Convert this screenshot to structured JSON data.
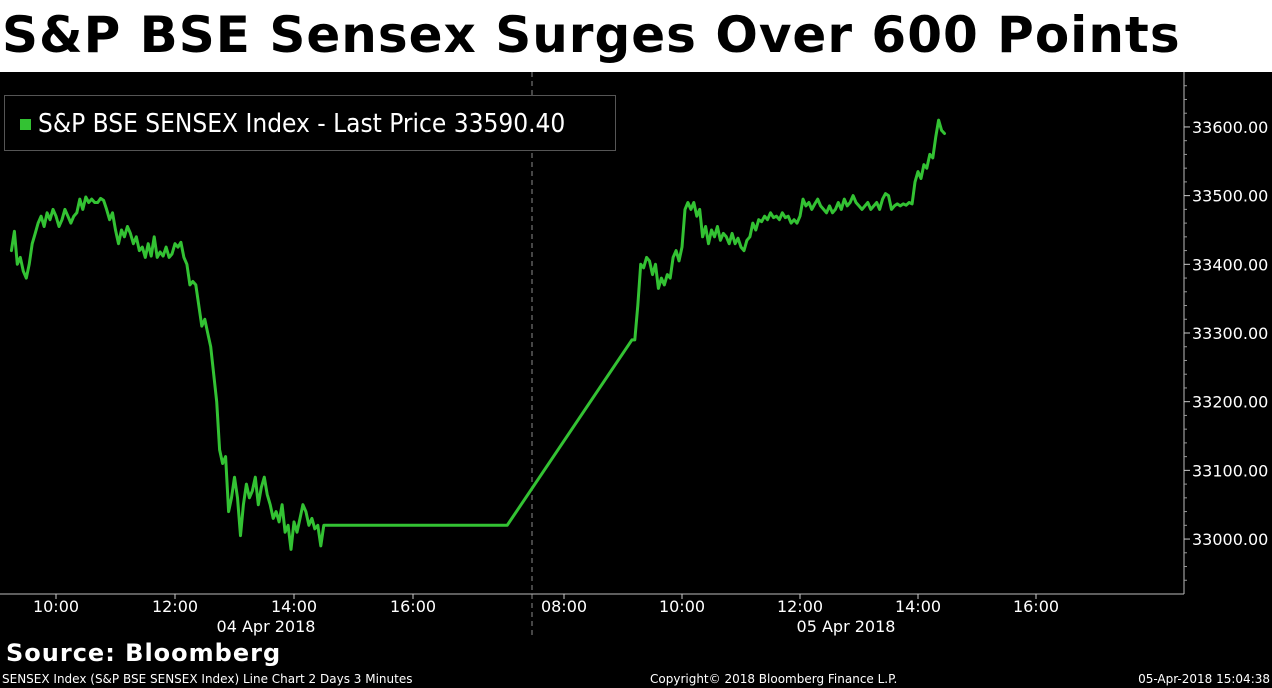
{
  "headline": "S&P BSE Sensex Surges Over 600 Points",
  "legend": {
    "label": "S&P BSE SENSEX Index - Last Price",
    "value": "33590.40"
  },
  "source": "Source: Bloomberg",
  "footer": {
    "left": "SENSEX Index (S&P BSE SENSEX Index) Line Chart 2 Days 3 Minutes",
    "center": "Copyright© 2018 Bloomberg Finance L.P.",
    "right": "05-Apr-2018 15:04:38"
  },
  "colors": {
    "line": "#33c233",
    "background": "#000000",
    "text": "#ffffff"
  },
  "chart_data": {
    "type": "line",
    "title": "S&P BSE Sensex Surges Over 600 Points",
    "ylim": [
      32920,
      33680
    ],
    "y_ticks": [
      "33600.00",
      "33500.00",
      "33400.00",
      "33300.00",
      "33200.00",
      "33100.00",
      "33000.00"
    ],
    "y_tick_values": [
      33600,
      33500,
      33400,
      33300,
      33200,
      33100,
      33000
    ],
    "grid": false,
    "legend_position": "top-left",
    "days": [
      {
        "label": "04 Apr 2018",
        "x_ticks": [
          "10:00",
          "12:00",
          "14:00",
          "16:00"
        ],
        "x_tick_values": [
          "10:00",
          "12:00",
          "14:00",
          "16:00"
        ]
      },
      {
        "label": "05 Apr 2018",
        "x_ticks": [
          "08:00",
          "10:00",
          "12:00",
          "14:00",
          "16:00"
        ],
        "x_tick_values": [
          "08:00",
          "10:00",
          "12:00",
          "14:00",
          "16:00"
        ]
      }
    ],
    "series": [
      {
        "name": "S&P BSE SENSEX Index - Last Price",
        "last_value": 33590.4,
        "points": [
          [
            "04 Apr 2018 09:15",
            33420
          ],
          [
            "04 Apr 2018 09:18",
            33448
          ],
          [
            "04 Apr 2018 09:21",
            33400
          ],
          [
            "04 Apr 2018 09:24",
            33410
          ],
          [
            "04 Apr 2018 09:27",
            33390
          ],
          [
            "04 Apr 2018 09:30",
            33380
          ],
          [
            "04 Apr 2018 09:33",
            33400
          ],
          [
            "04 Apr 2018 09:36",
            33430
          ],
          [
            "04 Apr 2018 09:39",
            33445
          ],
          [
            "04 Apr 2018 09:42",
            33460
          ],
          [
            "04 Apr 2018 09:45",
            33470
          ],
          [
            "04 Apr 2018 09:48",
            33455
          ],
          [
            "04 Apr 2018 09:51",
            33475
          ],
          [
            "04 Apr 2018 09:54",
            33465
          ],
          [
            "04 Apr 2018 09:57",
            33480
          ],
          [
            "04 Apr 2018 10:00",
            33470
          ],
          [
            "04 Apr 2018 10:03",
            33455
          ],
          [
            "04 Apr 2018 10:06",
            33465
          ],
          [
            "04 Apr 2018 10:09",
            33480
          ],
          [
            "04 Apr 2018 10:12",
            33470
          ],
          [
            "04 Apr 2018 10:15",
            33460
          ],
          [
            "04 Apr 2018 10:18",
            33470
          ],
          [
            "04 Apr 2018 10:21",
            33475
          ],
          [
            "04 Apr 2018 10:24",
            33495
          ],
          [
            "04 Apr 2018 10:27",
            33480
          ],
          [
            "04 Apr 2018 10:30",
            33498
          ],
          [
            "04 Apr 2018 10:33",
            33490
          ],
          [
            "04 Apr 2018 10:36",
            33495
          ],
          [
            "04 Apr 2018 10:39",
            33490
          ],
          [
            "04 Apr 2018 10:42",
            33490
          ],
          [
            "04 Apr 2018 10:45",
            33496
          ],
          [
            "04 Apr 2018 10:48",
            33493
          ],
          [
            "04 Apr 2018 10:51",
            33480
          ],
          [
            "04 Apr 2018 10:54",
            33465
          ],
          [
            "04 Apr 2018 10:57",
            33475
          ],
          [
            "04 Apr 2018 11:00",
            33450
          ],
          [
            "04 Apr 2018 11:03",
            33430
          ],
          [
            "04 Apr 2018 11:06",
            33450
          ],
          [
            "04 Apr 2018 11:09",
            33440
          ],
          [
            "04 Apr 2018 11:12",
            33455
          ],
          [
            "04 Apr 2018 11:15",
            33445
          ],
          [
            "04 Apr 2018 11:18",
            33430
          ],
          [
            "04 Apr 2018 11:21",
            33440
          ],
          [
            "04 Apr 2018 11:24",
            33420
          ],
          [
            "04 Apr 2018 11:27",
            33425
          ],
          [
            "04 Apr 2018 11:30",
            33410
          ],
          [
            "04 Apr 2018 11:33",
            33430
          ],
          [
            "04 Apr 2018 11:36",
            33412
          ],
          [
            "04 Apr 2018 11:39",
            33440
          ],
          [
            "04 Apr 2018 11:42",
            33410
          ],
          [
            "04 Apr 2018 11:45",
            33418
          ],
          [
            "04 Apr 2018 11:48",
            33412
          ],
          [
            "04 Apr 2018 11:51",
            33425
          ],
          [
            "04 Apr 2018 11:54",
            33410
          ],
          [
            "04 Apr 2018 11:57",
            33415
          ],
          [
            "04 Apr 2018 12:00",
            33430
          ],
          [
            "04 Apr 2018 12:03",
            33425
          ],
          [
            "04 Apr 2018 12:06",
            33432
          ],
          [
            "04 Apr 2018 12:09",
            33410
          ],
          [
            "04 Apr 2018 12:12",
            33400
          ],
          [
            "04 Apr 2018 12:15",
            33370
          ],
          [
            "04 Apr 2018 12:18",
            33375
          ],
          [
            "04 Apr 2018 12:21",
            33370
          ],
          [
            "04 Apr 2018 12:24",
            33340
          ],
          [
            "04 Apr 2018 12:27",
            33310
          ],
          [
            "04 Apr 2018 12:30",
            33320
          ],
          [
            "04 Apr 2018 12:33",
            33300
          ],
          [
            "04 Apr 2018 12:36",
            33280
          ],
          [
            "04 Apr 2018 12:39",
            33240
          ],
          [
            "04 Apr 2018 12:42",
            33200
          ],
          [
            "04 Apr 2018 12:45",
            33130
          ],
          [
            "04 Apr 2018 12:48",
            33110
          ],
          [
            "04 Apr 2018 12:51",
            33120
          ],
          [
            "04 Apr 2018 12:54",
            33040
          ],
          [
            "04 Apr 2018 12:57",
            33060
          ],
          [
            "04 Apr 2018 13:00",
            33090
          ],
          [
            "04 Apr 2018 13:03",
            33060
          ],
          [
            "04 Apr 2018 13:06",
            33005
          ],
          [
            "04 Apr 2018 13:09",
            33050
          ],
          [
            "04 Apr 2018 13:12",
            33080
          ],
          [
            "04 Apr 2018 13:15",
            33060
          ],
          [
            "04 Apr 2018 13:18",
            33070
          ],
          [
            "04 Apr 2018 13:21",
            33090
          ],
          [
            "04 Apr 2018 13:24",
            33050
          ],
          [
            "04 Apr 2018 13:27",
            33075
          ],
          [
            "04 Apr 2018 13:30",
            33090
          ],
          [
            "04 Apr 2018 13:33",
            33065
          ],
          [
            "04 Apr 2018 13:36",
            33050
          ],
          [
            "04 Apr 2018 13:39",
            33030
          ],
          [
            "04 Apr 2018 13:42",
            33040
          ],
          [
            "04 Apr 2018 13:45",
            33025
          ],
          [
            "04 Apr 2018 13:48",
            33050
          ],
          [
            "04 Apr 2018 13:51",
            33010
          ],
          [
            "04 Apr 2018 13:54",
            33020
          ],
          [
            "04 Apr 2018 13:57",
            32985
          ],
          [
            "04 Apr 2018 14:00",
            33025
          ],
          [
            "04 Apr 2018 14:03",
            33010
          ],
          [
            "04 Apr 2018 14:06",
            33030
          ],
          [
            "04 Apr 2018 14:09",
            33050
          ],
          [
            "04 Apr 2018 14:12",
            33040
          ],
          [
            "04 Apr 2018 14:15",
            33020
          ],
          [
            "04 Apr 2018 14:18",
            33030
          ],
          [
            "04 Apr 2018 14:21",
            33015
          ],
          [
            "04 Apr 2018 14:24",
            33020
          ],
          [
            "04 Apr 2018 14:27",
            32990
          ],
          [
            "04 Apr 2018 14:30",
            33020
          ],
          [
            "04 Apr 2018 15:30",
            33020
          ],
          [
            "04 Apr 2018 17:35",
            33020
          ],
          [
            "05 Apr 2018 09:09",
            33290
          ],
          [
            "05 Apr 2018 09:12",
            33290
          ],
          [
            "05 Apr 2018 09:15",
            33340
          ],
          [
            "05 Apr 2018 09:18",
            33400
          ],
          [
            "05 Apr 2018 09:21",
            33395
          ],
          [
            "05 Apr 2018 09:24",
            33410
          ],
          [
            "05 Apr 2018 09:27",
            33405
          ],
          [
            "05 Apr 2018 09:30",
            33385
          ],
          [
            "05 Apr 2018 09:33",
            33400
          ],
          [
            "05 Apr 2018 09:36",
            33365
          ],
          [
            "05 Apr 2018 09:39",
            33380
          ],
          [
            "05 Apr 2018 09:42",
            33370
          ],
          [
            "05 Apr 2018 09:45",
            33385
          ],
          [
            "05 Apr 2018 09:48",
            33380
          ],
          [
            "05 Apr 2018 09:51",
            33410
          ],
          [
            "05 Apr 2018 09:54",
            33420
          ],
          [
            "05 Apr 2018 09:57",
            33405
          ],
          [
            "05 Apr 2018 10:00",
            33425
          ],
          [
            "05 Apr 2018 10:03",
            33480
          ],
          [
            "05 Apr 2018 10:06",
            33490
          ],
          [
            "05 Apr 2018 10:09",
            33480
          ],
          [
            "05 Apr 2018 10:12",
            33490
          ],
          [
            "05 Apr 2018 10:15",
            33470
          ],
          [
            "05 Apr 2018 10:18",
            33480
          ],
          [
            "05 Apr 2018 10:21",
            33440
          ],
          [
            "05 Apr 2018 10:24",
            33455
          ],
          [
            "05 Apr 2018 10:27",
            33430
          ],
          [
            "05 Apr 2018 10:30",
            33450
          ],
          [
            "05 Apr 2018 10:33",
            33440
          ],
          [
            "05 Apr 2018 10:36",
            33455
          ],
          [
            "05 Apr 2018 10:39",
            33435
          ],
          [
            "05 Apr 2018 10:42",
            33445
          ],
          [
            "05 Apr 2018 10:45",
            33440
          ],
          [
            "05 Apr 2018 10:48",
            33430
          ],
          [
            "05 Apr 2018 10:51",
            33445
          ],
          [
            "05 Apr 2018 10:54",
            33430
          ],
          [
            "05 Apr 2018 10:57",
            33438
          ],
          [
            "05 Apr 2018 11:00",
            33425
          ],
          [
            "05 Apr 2018 11:03",
            33420
          ],
          [
            "05 Apr 2018 11:06",
            33435
          ],
          [
            "05 Apr 2018 11:09",
            33440
          ],
          [
            "05 Apr 2018 11:12",
            33460
          ],
          [
            "05 Apr 2018 11:15",
            33450
          ],
          [
            "05 Apr 2018 11:18",
            33465
          ],
          [
            "05 Apr 2018 11:21",
            33462
          ],
          [
            "05 Apr 2018 11:24",
            33470
          ],
          [
            "05 Apr 2018 11:27",
            33465
          ],
          [
            "05 Apr 2018 11:30",
            33475
          ],
          [
            "05 Apr 2018 11:33",
            33468
          ],
          [
            "05 Apr 2018 11:36",
            33470
          ],
          [
            "05 Apr 2018 11:39",
            33465
          ],
          [
            "05 Apr 2018 11:42",
            33475
          ],
          [
            "05 Apr 2018 11:45",
            33468
          ],
          [
            "05 Apr 2018 11:48",
            33470
          ],
          [
            "05 Apr 2018 11:51",
            33460
          ],
          [
            "05 Apr 2018 11:54",
            33465
          ],
          [
            "05 Apr 2018 11:57",
            33460
          ],
          [
            "05 Apr 2018 12:00",
            33470
          ],
          [
            "05 Apr 2018 12:03",
            33495
          ],
          [
            "05 Apr 2018 12:06",
            33485
          ],
          [
            "05 Apr 2018 12:09",
            33490
          ],
          [
            "05 Apr 2018 12:12",
            33480
          ],
          [
            "05 Apr 2018 12:15",
            33488
          ],
          [
            "05 Apr 2018 12:18",
            33495
          ],
          [
            "05 Apr 2018 12:21",
            33485
          ],
          [
            "05 Apr 2018 12:24",
            33480
          ],
          [
            "05 Apr 2018 12:27",
            33475
          ],
          [
            "05 Apr 2018 12:30",
            33485
          ],
          [
            "05 Apr 2018 12:33",
            33475
          ],
          [
            "05 Apr 2018 12:36",
            33480
          ],
          [
            "05 Apr 2018 12:39",
            33490
          ],
          [
            "05 Apr 2018 12:42",
            33480
          ],
          [
            "05 Apr 2018 12:45",
            33495
          ],
          [
            "05 Apr 2018 12:48",
            33485
          ],
          [
            "05 Apr 2018 12:51",
            33490
          ],
          [
            "05 Apr 2018 12:54",
            33500
          ],
          [
            "05 Apr 2018 12:57",
            33490
          ],
          [
            "05 Apr 2018 13:00",
            33485
          ],
          [
            "05 Apr 2018 13:03",
            33480
          ],
          [
            "05 Apr 2018 13:06",
            33485
          ],
          [
            "05 Apr 2018 13:09",
            33490
          ],
          [
            "05 Apr 2018 13:12",
            33480
          ],
          [
            "05 Apr 2018 13:15",
            33485
          ],
          [
            "05 Apr 2018 13:18",
            33490
          ],
          [
            "05 Apr 2018 13:21",
            33480
          ],
          [
            "05 Apr 2018 13:24",
            33495
          ],
          [
            "05 Apr 2018 13:27",
            33503
          ],
          [
            "05 Apr 2018 13:30",
            33500
          ],
          [
            "05 Apr 2018 13:33",
            33480
          ],
          [
            "05 Apr 2018 13:36",
            33485
          ],
          [
            "05 Apr 2018 13:39",
            33488
          ],
          [
            "05 Apr 2018 13:42",
            33485
          ],
          [
            "05 Apr 2018 13:45",
            33488
          ],
          [
            "05 Apr 2018 13:48",
            33486
          ],
          [
            "05 Apr 2018 13:51",
            33490
          ],
          [
            "05 Apr 2018 13:54",
            33488
          ],
          [
            "05 Apr 2018 13:57",
            33520
          ],
          [
            "05 Apr 2018 14:00",
            33535
          ],
          [
            "05 Apr 2018 14:03",
            33525
          ],
          [
            "05 Apr 2018 14:06",
            33545
          ],
          [
            "05 Apr 2018 14:09",
            33540
          ],
          [
            "05 Apr 2018 14:12",
            33560
          ],
          [
            "05 Apr 2018 14:15",
            33555
          ],
          [
            "05 Apr 2018 14:18",
            33585
          ],
          [
            "05 Apr 2018 14:21",
            33610
          ],
          [
            "05 Apr 2018 14:24",
            33595
          ],
          [
            "05 Apr 2018 14:27",
            33590.4
          ]
        ]
      }
    ]
  }
}
